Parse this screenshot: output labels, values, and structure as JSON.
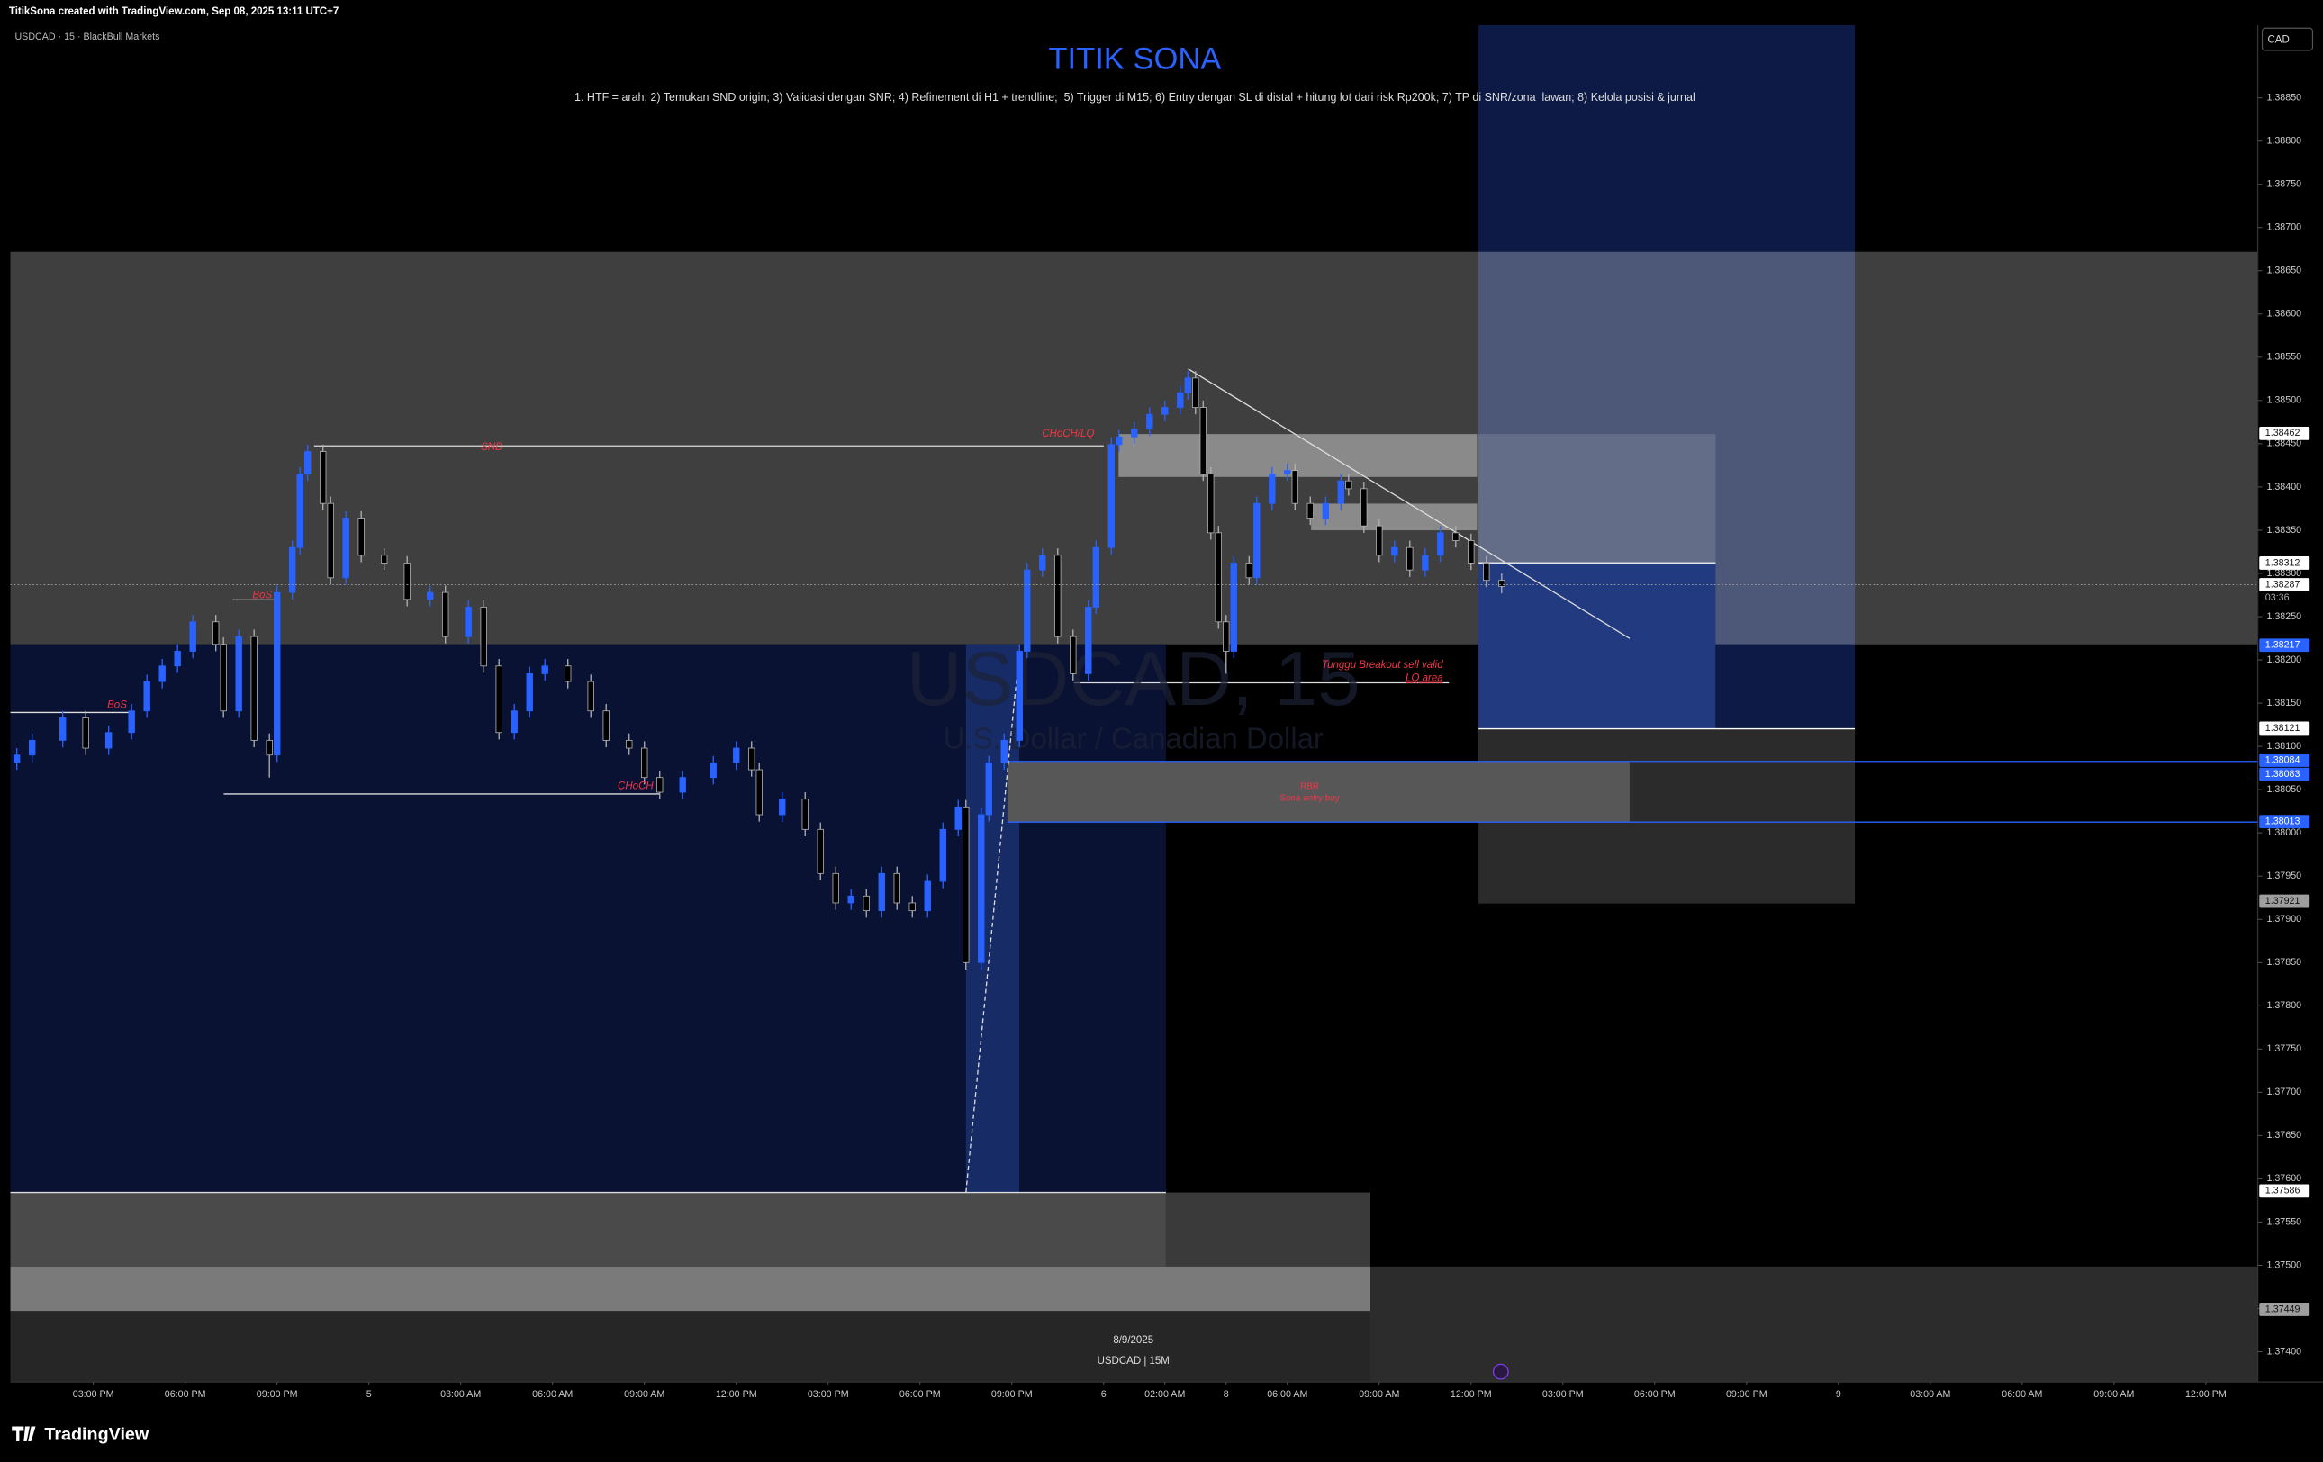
{
  "header": {
    "attribution": "TitikSona created with TradingView.com, Sep 08, 2025 13:11 UTC+7",
    "symbol_info": "USDCAD · 15 · BlackBull Markets",
    "currency": "CAD"
  },
  "chart_data": {
    "type": "candlestick",
    "title": "TITIK SONA",
    "subtitle": "1. HTF = arah; 2) Temukan SND origin; 3) Validasi dengan SNR; 4) Refinement di H1 + trendline;  5) Trigger di M15; 6) Entry dengan SL di distal + hitung lot dari risk Rp200k; 7) TP di SNR/zona  lawan; 8) Kelola posisi & jurnal",
    "up_color": "#2962ff",
    "down_color": "#000000",
    "down_border_color": "#b0b0b0",
    "x": [
      -10,
      -8,
      -4,
      -1,
      2,
      5,
      7,
      9,
      11,
      13,
      16,
      17,
      19,
      21,
      23,
      24,
      26,
      27,
      28,
      30,
      31,
      33,
      35,
      38,
      41,
      44,
      46,
      49,
      51,
      53,
      55,
      57,
      59,
      62,
      65,
      67,
      70,
      72,
      74,
      77,
      81,
      84,
      86,
      87,
      90,
      93,
      95,
      97,
      99,
      101,
      103,
      105,
      107,
      109,
      111,
      113,
      114,
      116,
      117,
      119,
      121,
      122,
      124,
      126,
      128,
      130,
      131,
      133,
      134,
      136,
      138,
      140,
      142,
      143,
      144,
      145,
      146,
      147,
      148,
      149,
      151,
      152,
      154,
      156,
      157,
      159,
      161,
      163,
      164,
      166,
      168,
      170,
      172,
      174,
      176,
      178,
      180,
      182,
      184
    ],
    "open": [
      1.38081,
      1.3809,
      1.38107,
      1.38133,
      1.38098,
      1.38116,
      1.38141,
      1.38175,
      1.38193,
      1.3821,
      1.38244,
      1.38218,
      1.38141,
      1.38227,
      1.38107,
      1.3809,
      1.38278,
      1.3833,
      1.38415,
      1.38441,
      1.38381,
      1.38295,
      1.38364,
      1.38321,
      1.38312,
      1.3827,
      1.38278,
      1.38227,
      1.38261,
      1.38193,
      1.38116,
      1.38141,
      1.38184,
      1.38193,
      1.38175,
      1.38141,
      1.38107,
      1.38098,
      1.38064,
      1.38047,
      1.38064,
      1.38081,
      1.38098,
      1.38073,
      1.38021,
      1.38039,
      1.38004,
      1.37953,
      1.37919,
      1.37927,
      1.3791,
      1.37953,
      1.37919,
      1.3791,
      1.37944,
      1.38004,
      1.3803,
      1.3785,
      1.38021,
      1.38081,
      1.38107,
      1.3821,
      1.38304,
      1.38321,
      1.38227,
      1.38184,
      1.38261,
      1.3833,
      1.38449,
      1.38458,
      1.38467,
      1.38484,
      1.38492,
      1.38509,
      1.38526,
      1.38492,
      1.38415,
      1.38347,
      1.38244,
      1.3821,
      1.38312,
      1.38295,
      1.38381,
      1.38415,
      1.38419,
      1.38381,
      1.38364,
      1.38381,
      1.38407,
      1.38398,
      1.38355,
      1.38321,
      1.3833,
      1.38304,
      1.38321,
      1.38347,
      1.38338,
      1.38312,
      1.38292
    ],
    "high": [
      1.38098,
      1.38115,
      1.38141,
      1.38141,
      1.38124,
      1.38149,
      1.38183,
      1.38201,
      1.38218,
      1.38252,
      1.38252,
      1.38226,
      1.38235,
      1.38235,
      1.38115,
      1.38286,
      1.38338,
      1.38423,
      1.38449,
      1.38449,
      1.38389,
      1.38372,
      1.38372,
      1.38329,
      1.3832,
      1.38286,
      1.38286,
      1.38269,
      1.38269,
      1.38201,
      1.38149,
      1.38192,
      1.38201,
      1.38201,
      1.38183,
      1.38149,
      1.38115,
      1.38106,
      1.38072,
      1.38072,
      1.38089,
      1.38106,
      1.38106,
      1.38081,
      1.38047,
      1.38047,
      1.38012,
      1.37961,
      1.37935,
      1.37935,
      1.37961,
      1.37961,
      1.37927,
      1.37952,
      1.38012,
      1.38038,
      1.38038,
      1.38029,
      1.38089,
      1.38115,
      1.38218,
      1.38312,
      1.38329,
      1.38329,
      1.38235,
      1.38269,
      1.38338,
      1.38457,
      1.38466,
      1.38475,
      1.38492,
      1.385,
      1.38517,
      1.38534,
      1.38534,
      1.385,
      1.38423,
      1.38355,
      1.38252,
      1.3832,
      1.3832,
      1.38389,
      1.38423,
      1.38427,
      1.38427,
      1.38389,
      1.38389,
      1.38415,
      1.38415,
      1.38406,
      1.38363,
      1.38338,
      1.38338,
      1.38329,
      1.38355,
      1.38355,
      1.38346,
      1.3832,
      1.383
    ],
    "low": [
      1.38073,
      1.38082,
      1.38099,
      1.3809,
      1.3809,
      1.38108,
      1.38133,
      1.38167,
      1.38185,
      1.38202,
      1.3821,
      1.38133,
      1.38133,
      1.38099,
      1.38064,
      1.38082,
      1.3827,
      1.38322,
      1.38407,
      1.38373,
      1.38287,
      1.38287,
      1.38313,
      1.38304,
      1.38262,
      1.38262,
      1.38219,
      1.38219,
      1.38185,
      1.38108,
      1.38108,
      1.38133,
      1.38176,
      1.38167,
      1.38133,
      1.38099,
      1.3809,
      1.38056,
      1.38039,
      1.38039,
      1.38056,
      1.38073,
      1.38065,
      1.38013,
      1.38013,
      1.37996,
      1.37945,
      1.37911,
      1.37911,
      1.37902,
      1.37902,
      1.37911,
      1.37902,
      1.37902,
      1.37936,
      1.37996,
      1.37842,
      1.37842,
      1.38013,
      1.38073,
      1.38099,
      1.38202,
      1.38296,
      1.38219,
      1.38176,
      1.38176,
      1.38253,
      1.38322,
      1.38441,
      1.3845,
      1.38459,
      1.38476,
      1.38484,
      1.38501,
      1.38484,
      1.38407,
      1.38339,
      1.38236,
      1.38184,
      1.38202,
      1.38287,
      1.38287,
      1.38373,
      1.38407,
      1.38373,
      1.38356,
      1.38356,
      1.38373,
      1.3839,
      1.38347,
      1.38313,
      1.38313,
      1.38296,
      1.38296,
      1.38313,
      1.3833,
      1.38304,
      1.38284,
      1.38277
    ],
    "close": [
      1.3809,
      1.38107,
      1.38133,
      1.38098,
      1.38116,
      1.38141,
      1.38175,
      1.38193,
      1.3821,
      1.38244,
      1.38218,
      1.38141,
      1.38227,
      1.38107,
      1.3809,
      1.38278,
      1.3833,
      1.38415,
      1.38441,
      1.38381,
      1.38295,
      1.38364,
      1.38321,
      1.38312,
      1.3827,
      1.38278,
      1.38227,
      1.38261,
      1.38193,
      1.38116,
      1.38141,
      1.38184,
      1.38193,
      1.38175,
      1.38141,
      1.38107,
      1.38098,
      1.38064,
      1.38047,
      1.38064,
      1.38081,
      1.38098,
      1.38073,
      1.38021,
      1.38039,
      1.38004,
      1.37953,
      1.37919,
      1.37927,
      1.3791,
      1.37953,
      1.37919,
      1.3791,
      1.37944,
      1.38004,
      1.3803,
      1.3785,
      1.38021,
      1.38081,
      1.38107,
      1.3821,
      1.38304,
      1.38321,
      1.38227,
      1.38184,
      1.38261,
      1.3833,
      1.38449,
      1.38458,
      1.38467,
      1.38484,
      1.38492,
      1.38509,
      1.38526,
      1.38492,
      1.38415,
      1.38347,
      1.38244,
      1.3821,
      1.38312,
      1.38295,
      1.38381,
      1.38415,
      1.38419,
      1.38381,
      1.38364,
      1.38381,
      1.38407,
      1.38398,
      1.38355,
      1.38321,
      1.3833,
      1.38304,
      1.38321,
      1.38347,
      1.38338,
      1.38312,
      1.38292,
      1.38285
    ],
    "xlim": [
      -10.84,
      282.79
    ],
    "ylim": [
      1.37365,
      1.38934
    ],
    "xticks": [
      {
        "value": 0,
        "label": "03:00 PM"
      },
      {
        "value": 12,
        "label": "06:00 PM"
      },
      {
        "value": 24,
        "label": "09:00 PM"
      },
      {
        "value": 36,
        "label": "5"
      },
      {
        "value": 48,
        "label": "03:00 AM"
      },
      {
        "value": 60,
        "label": "06:00 AM"
      },
      {
        "value": 72,
        "label": "09:00 AM"
      },
      {
        "value": 84,
        "label": "12:00 PM"
      },
      {
        "value": 96,
        "label": "03:00 PM"
      },
      {
        "value": 108,
        "label": "06:00 PM"
      },
      {
        "value": 120,
        "label": "09:00 PM"
      },
      {
        "value": 132,
        "label": "6"
      },
      {
        "value": 140,
        "label": "02:00 AM"
      },
      {
        "value": 148,
        "label": "8"
      },
      {
        "value": 156,
        "label": "06:00 AM"
      },
      {
        "value": 168,
        "label": "09:00 AM"
      },
      {
        "value": 180,
        "label": "12:00 PM"
      },
      {
        "value": 192,
        "label": "03:00 PM"
      },
      {
        "value": 204,
        "label": "06:00 PM"
      },
      {
        "value": 216,
        "label": "09:00 PM"
      },
      {
        "value": 228,
        "label": "9"
      },
      {
        "value": 240,
        "label": "03:00 AM"
      },
      {
        "value": 252,
        "label": "06:00 AM"
      },
      {
        "value": 264,
        "label": "09:00 AM"
      },
      {
        "value": 276,
        "label": "12:00 PM"
      }
    ],
    "yticks": [
      {
        "value": 1.374,
        "label": "1.37400"
      },
      {
        "value": 1.3745,
        "label": "1.37450"
      },
      {
        "value": 1.375,
        "label": "1.37500"
      },
      {
        "value": 1.3755,
        "label": "1.37550"
      },
      {
        "value": 1.376,
        "label": "1.37600"
      },
      {
        "value": 1.3765,
        "label": "1.37650"
      },
      {
        "value": 1.377,
        "label": "1.37700"
      },
      {
        "value": 1.3775,
        "label": "1.37750"
      },
      {
        "value": 1.378,
        "label": "1.37800"
      },
      {
        "value": 1.3785,
        "label": "1.37850"
      },
      {
        "value": 1.379,
        "label": "1.37900"
      },
      {
        "value": 1.3795,
        "label": "1.37950"
      },
      {
        "value": 1.38,
        "label": "1.38000"
      },
      {
        "value": 1.3805,
        "label": "1.38050"
      },
      {
        "value": 1.381,
        "label": "1.38100"
      },
      {
        "value": 1.3815,
        "label": "1.38150"
      },
      {
        "value": 1.382,
        "label": "1.38200"
      },
      {
        "value": 1.3825,
        "label": "1.38250"
      },
      {
        "value": 1.383,
        "label": "1.38300"
      },
      {
        "value": 1.3835,
        "label": "1.38350"
      },
      {
        "value": 1.384,
        "label": "1.38400"
      },
      {
        "value": 1.3845,
        "label": "1.38450"
      },
      {
        "value": 1.385,
        "label": "1.38500"
      },
      {
        "value": 1.3855,
        "label": "1.38550"
      },
      {
        "value": 1.386,
        "label": "1.38600"
      },
      {
        "value": 1.3865,
        "label": "1.38650"
      },
      {
        "value": 1.387,
        "label": "1.38700"
      },
      {
        "value": 1.3875,
        "label": "1.38750"
      },
      {
        "value": 1.388,
        "label": "1.38800"
      },
      {
        "value": 1.3885,
        "label": "1.38850"
      }
    ],
    "price_labels": [
      {
        "value": 1.38462,
        "color": "#ffffff"
      },
      {
        "value": 1.38312,
        "color": "#ffffff"
      },
      {
        "value": 1.38287,
        "color": "#ffffff"
      },
      {
        "value": 1.38217,
        "color": "#2962ff"
      },
      {
        "value": 1.38121,
        "color": "#ffffff"
      },
      {
        "value": 1.38084,
        "color": "#2962ff"
      },
      {
        "value": 1.38083,
        "color": "#2962ff"
      },
      {
        "value": 1.38013,
        "color": "#2962ff"
      },
      {
        "value": 1.37921,
        "color": "#9e9e9e"
      },
      {
        "value": 1.37586,
        "color": "#ffffff"
      },
      {
        "value": 1.37449,
        "color": "#9e9e9e"
      }
    ],
    "countdown": "03:36",
    "annotations": [
      "SND",
      "CHoCH/LQ",
      "BoS",
      "BoS",
      "CHoCH",
      "Tunggu Breakout sell valid",
      "LQ area",
      "RBR",
      "Sona entry buy"
    ],
    "watermark": [
      "USDCAD, 15",
      "U.S. Dollar / Canadian Dollar"
    ],
    "footer_date": "8/9/2025",
    "footer_symbol": "USDCAD | 15M"
  },
  "branding": "TradingView"
}
